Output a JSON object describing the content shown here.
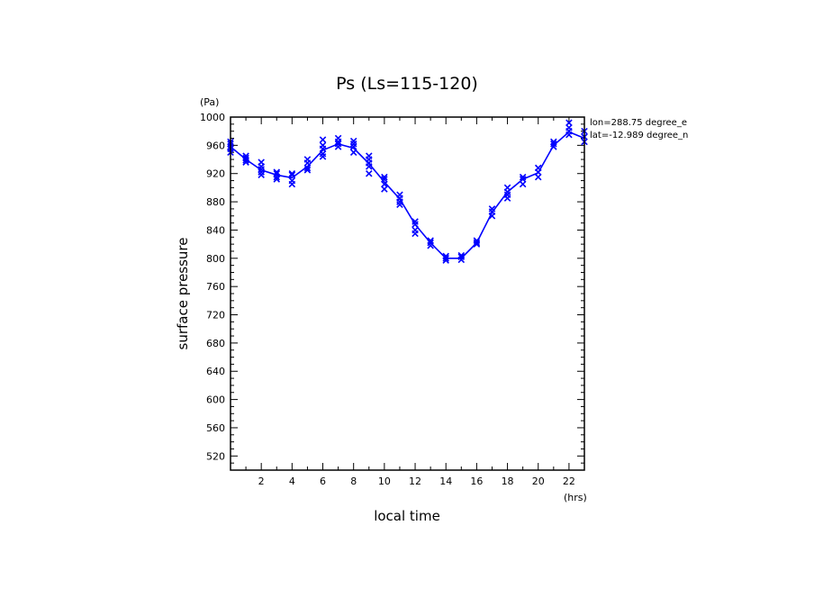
{
  "chart_data": {
    "type": "line",
    "title": "Ps (Ls=115-120)",
    "xlabel": "local time",
    "ylabel": "surface pressure",
    "x_unit": "(hrs)",
    "y_unit": "(Pa)",
    "xlim": [
      0,
      23
    ],
    "ylim": [
      500,
      1000
    ],
    "x_ticks": [
      2,
      4,
      6,
      8,
      10,
      12,
      14,
      16,
      18,
      20,
      22
    ],
    "y_ticks": [
      520,
      560,
      600,
      640,
      680,
      720,
      760,
      800,
      840,
      880,
      920,
      960,
      1000
    ],
    "annotations": [
      "lon=288.75 degree_e",
      "lat=-12.989 degree_n"
    ],
    "series_color": "#0000ff",
    "mean_series": {
      "x": [
        0,
        1,
        2,
        3,
        4,
        5,
        6,
        7,
        8,
        9,
        10,
        11,
        12,
        13,
        14,
        15,
        16,
        17,
        18,
        19,
        20,
        21,
        22,
        23
      ],
      "values": [
        958,
        940,
        925,
        918,
        914,
        930,
        953,
        962,
        956,
        934,
        908,
        884,
        848,
        822,
        800,
        800,
        822,
        865,
        894,
        912,
        921,
        960,
        979,
        970
      ]
    },
    "scatter_points": [
      [
        0,
        962
      ],
      [
        0,
        955
      ],
      [
        0,
        950
      ],
      [
        0,
        965
      ],
      [
        0,
        958
      ],
      [
        1,
        942
      ],
      [
        1,
        936
      ],
      [
        1,
        945
      ],
      [
        1,
        939
      ],
      [
        2,
        930
      ],
      [
        2,
        922
      ],
      [
        2,
        918
      ],
      [
        2,
        936
      ],
      [
        2,
        926
      ],
      [
        3,
        922
      ],
      [
        3,
        915
      ],
      [
        3,
        920
      ],
      [
        3,
        912
      ],
      [
        4,
        918
      ],
      [
        4,
        910
      ],
      [
        4,
        905
      ],
      [
        4,
        920
      ],
      [
        5,
        935
      ],
      [
        5,
        925
      ],
      [
        5,
        940
      ],
      [
        5,
        928
      ],
      [
        6,
        960
      ],
      [
        6,
        948
      ],
      [
        6,
        968
      ],
      [
        6,
        944
      ],
      [
        6,
        955
      ],
      [
        7,
        965
      ],
      [
        7,
        958
      ],
      [
        7,
        970
      ],
      [
        7,
        962
      ],
      [
        8,
        962
      ],
      [
        8,
        950
      ],
      [
        8,
        958
      ],
      [
        8,
        966
      ],
      [
        9,
        945
      ],
      [
        9,
        930
      ],
      [
        9,
        920
      ],
      [
        9,
        940
      ],
      [
        9,
        935
      ],
      [
        10,
        915
      ],
      [
        10,
        905
      ],
      [
        10,
        898
      ],
      [
        10,
        912
      ],
      [
        11,
        890
      ],
      [
        11,
        880
      ],
      [
        11,
        876
      ],
      [
        11,
        885
      ],
      [
        12,
        852
      ],
      [
        12,
        840
      ],
      [
        12,
        835
      ],
      [
        12,
        848
      ],
      [
        13,
        825
      ],
      [
        13,
        818
      ],
      [
        13,
        822
      ],
      [
        14,
        803
      ],
      [
        14,
        797
      ],
      [
        14,
        800
      ],
      [
        15,
        804
      ],
      [
        15,
        798
      ],
      [
        15,
        802
      ],
      [
        16,
        825
      ],
      [
        16,
        820
      ],
      [
        16,
        822
      ],
      [
        17,
        870
      ],
      [
        17,
        860
      ],
      [
        17,
        866
      ],
      [
        18,
        900
      ],
      [
        18,
        885
      ],
      [
        18,
        894
      ],
      [
        18,
        890
      ],
      [
        19,
        915
      ],
      [
        19,
        905
      ],
      [
        19,
        912
      ],
      [
        20,
        928
      ],
      [
        20,
        915
      ],
      [
        20,
        922
      ],
      [
        21,
        965
      ],
      [
        21,
        958
      ],
      [
        21,
        962
      ],
      [
        22,
        985
      ],
      [
        22,
        975
      ],
      [
        22,
        980
      ],
      [
        22,
        992
      ],
      [
        23,
        980
      ],
      [
        23,
        965
      ],
      [
        23,
        972
      ]
    ]
  }
}
